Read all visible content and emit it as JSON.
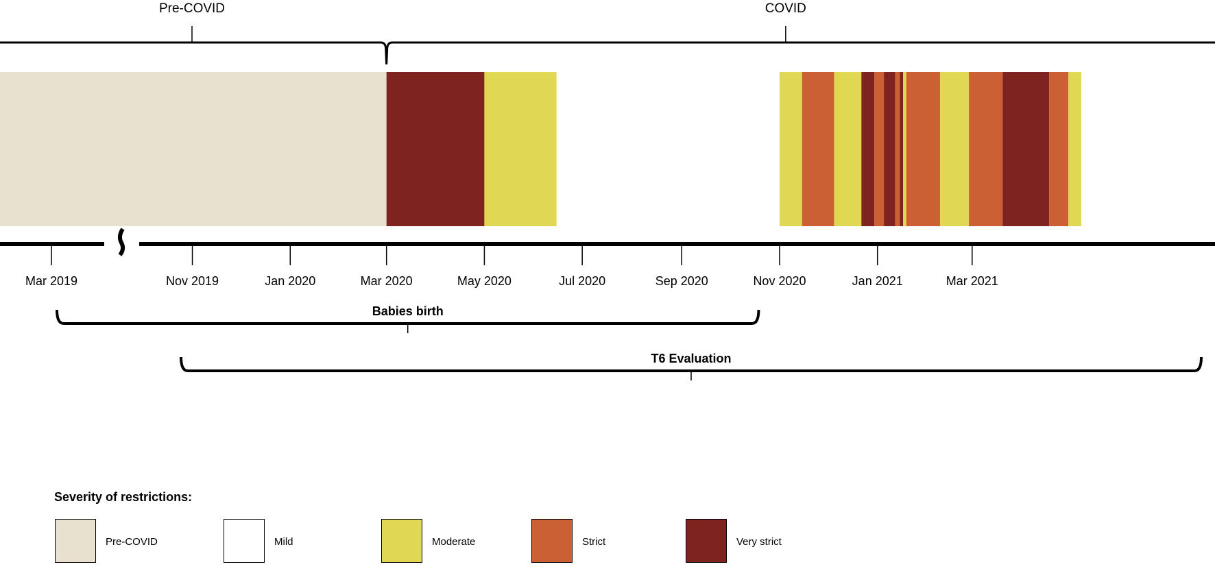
{
  "periods": {
    "pre": "Pre-COVID",
    "covid": "COVID"
  },
  "ticks": [
    "Mar 2019",
    "Nov 2019",
    "Jan 2020",
    "Mar 2020",
    "May 2020",
    "Jul 2020",
    "Sep 2020",
    "Nov 2020",
    "Jan 2021",
    "Mar 2021"
  ],
  "brackets": {
    "birth": "Babies birth",
    "t6": "T6 Evaluation"
  },
  "legend": {
    "title": "Severity of restrictions:",
    "items": [
      {
        "label": "Pre-COVID",
        "color": "#e8e1cf"
      },
      {
        "label": "Mild",
        "color": "#ffffff"
      },
      {
        "label": "Moderate",
        "color": "#e0d752"
      },
      {
        "label": "Strict",
        "color": "#cc6035"
      },
      {
        "label": "Very strict",
        "color": "#7e2320"
      }
    ]
  },
  "colors": {
    "pre": "#e8e1cf",
    "mild": "#ffffff",
    "moderate": "#e0d752",
    "strict": "#cc6035",
    "very_strict": "#7e2320",
    "line": "#000000"
  },
  "timeline": [
    {
      "level": "pre",
      "start": "2019-03-01",
      "end": "2020-03-01"
    },
    {
      "level": "very_strict",
      "start": "2020-03-01",
      "end": "2020-05-01"
    },
    {
      "level": "moderate",
      "start": "2020-05-01",
      "end": "2020-06-15"
    },
    {
      "level": "mild",
      "start": "2020-06-15",
      "end": "2020-11-01"
    },
    {
      "level": "moderate",
      "start": "2020-11-01",
      "end": "2020-11-15"
    },
    {
      "level": "strict",
      "start": "2020-11-15",
      "end": "2020-12-05"
    },
    {
      "level": "moderate",
      "start": "2020-12-05",
      "end": "2020-12-22"
    },
    {
      "level": "very_strict",
      "start": "2020-12-22",
      "end": "2020-12-30"
    },
    {
      "level": "strict",
      "start": "2020-12-30",
      "end": "2021-01-05"
    },
    {
      "level": "very_strict",
      "start": "2021-01-05",
      "end": "2021-01-12"
    },
    {
      "level": "strict",
      "start": "2021-01-12",
      "end": "2021-01-15"
    },
    {
      "level": "very_strict",
      "start": "2021-01-15",
      "end": "2021-01-17"
    },
    {
      "level": "moderate",
      "start": "2021-01-17",
      "end": "2021-01-19"
    },
    {
      "level": "strict",
      "start": "2021-01-19",
      "end": "2021-02-09"
    },
    {
      "level": "moderate",
      "start": "2021-02-09",
      "end": "2021-02-27"
    },
    {
      "level": "strict",
      "start": "2021-02-27",
      "end": "2021-03-20"
    },
    {
      "level": "very_strict",
      "start": "2021-03-20",
      "end": "2021-04-18"
    },
    {
      "level": "strict",
      "start": "2021-04-18",
      "end": "2021-04-30"
    },
    {
      "level": "moderate",
      "start": "2021-04-30",
      "end": "2021-05-08"
    }
  ],
  "periods_span": {
    "pre": {
      "start": "2019-03-01",
      "end": "2020-03-01"
    },
    "covid": {
      "start": "2020-03-01",
      "end": "2021-05-08"
    }
  },
  "bracket_spans": {
    "birth": {
      "start": "2019-03-01",
      "end": "2020-10-01"
    },
    "t6": {
      "start": "2019-10-01",
      "end": "2021-05-08"
    }
  }
}
